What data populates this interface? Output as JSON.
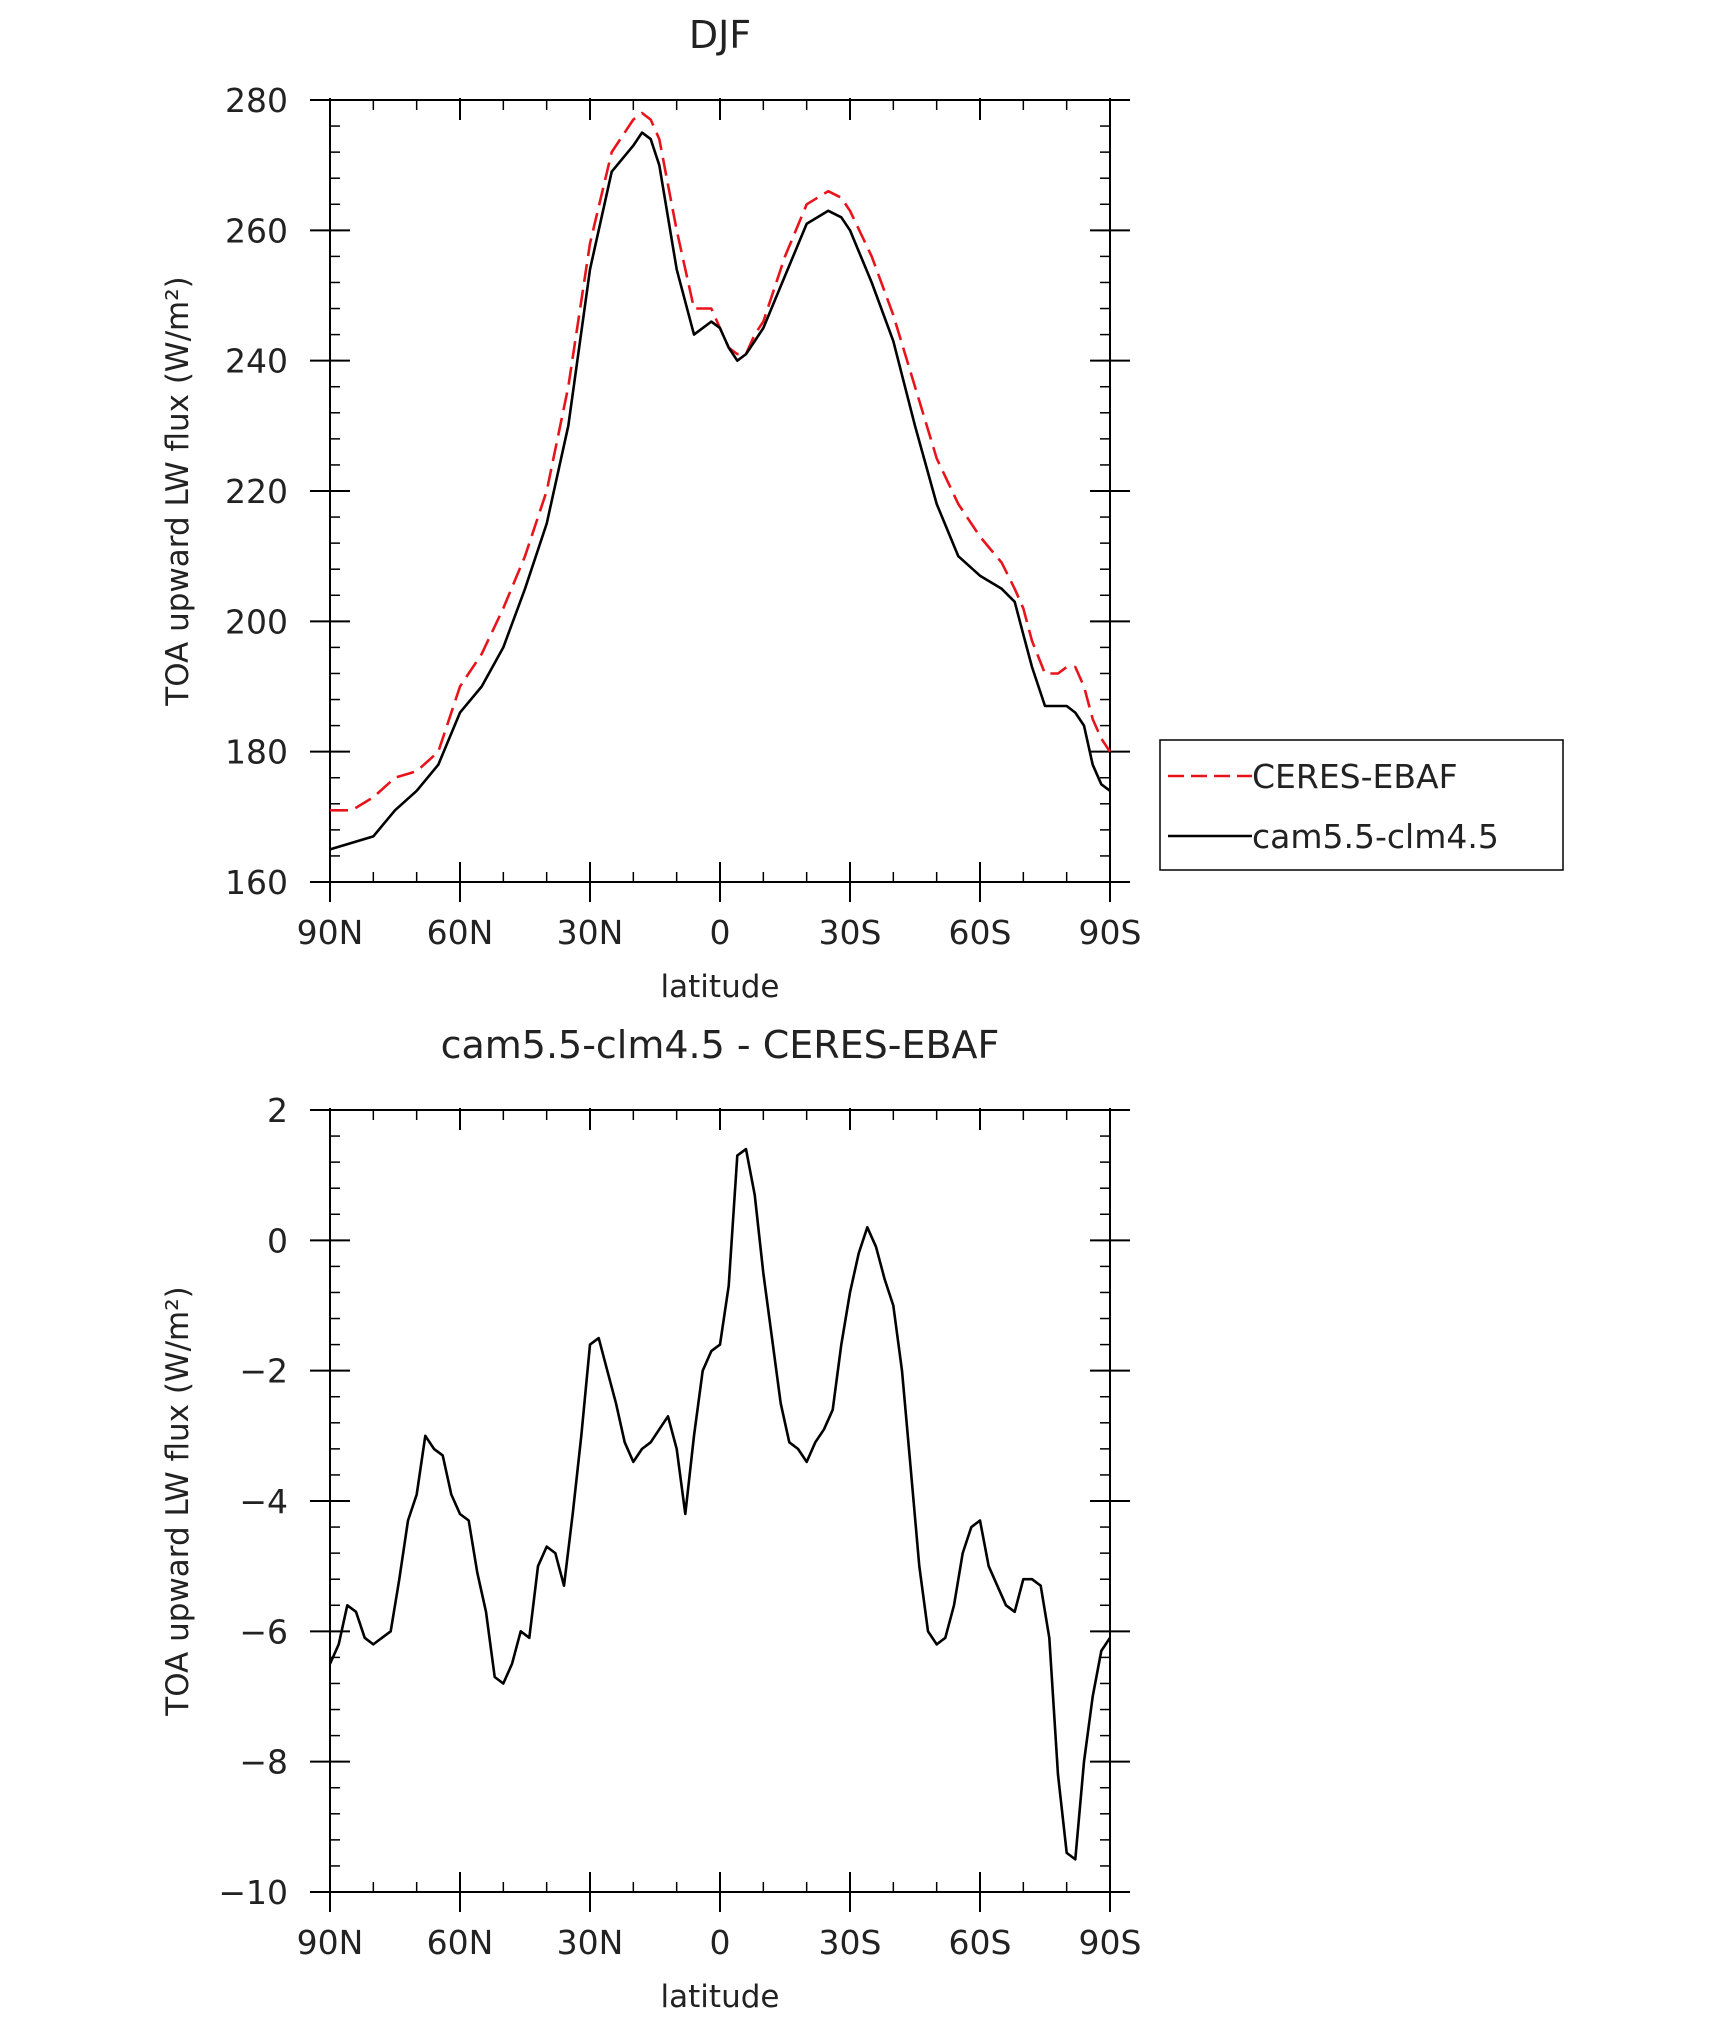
{
  "chart_data": [
    {
      "type": "line",
      "title": "DJF",
      "xlabel": "latitude",
      "ylabel": "TOA upward LW flux (W/m²)",
      "xlim": [
        90,
        -90
      ],
      "ylim": [
        160,
        280
      ],
      "x_ticks": [
        90,
        60,
        30,
        0,
        -30,
        -60,
        -90
      ],
      "x_tick_labels": [
        "90N",
        "60N",
        "30N",
        "0",
        "30S",
        "60S",
        "90S"
      ],
      "y_ticks": [
        160,
        180,
        200,
        220,
        240,
        260,
        280
      ],
      "y_tick_labels": [
        "160",
        "180",
        "200",
        "220",
        "240",
        "260",
        "280"
      ],
      "legend": "right",
      "series": [
        {
          "name": "CERES-EBAF",
          "color": "#e8141c",
          "dash": "dashed",
          "x": [
            90,
            85,
            80,
            75,
            70,
            65,
            60,
            55,
            50,
            45,
            40,
            35,
            30,
            25,
            20,
            18,
            16,
            14,
            10,
            6,
            4,
            2,
            0,
            -2,
            -4,
            -6,
            -8,
            -10,
            -15,
            -20,
            -25,
            -28,
            -30,
            -35,
            -40,
            -45,
            -50,
            -55,
            -60,
            -65,
            -68,
            -70,
            -72,
            -75,
            -78,
            -80,
            -82,
            -84,
            -86,
            -88,
            -90
          ],
          "y": [
            171,
            171,
            173,
            176,
            177,
            180,
            190,
            195,
            202,
            210,
            220,
            236,
            258,
            272,
            277,
            278,
            277,
            274,
            260,
            248,
            248,
            248,
            245,
            242,
            241,
            241,
            244,
            246,
            256,
            264,
            266,
            265,
            263,
            256,
            247,
            236,
            225,
            218,
            213,
            209,
            205,
            202,
            197,
            192,
            192,
            193,
            193,
            190,
            185,
            182,
            180
          ]
        },
        {
          "name": "cam5.5-clm4.5",
          "color": "#000000",
          "dash": "solid",
          "x": [
            90,
            85,
            80,
            75,
            70,
            65,
            60,
            55,
            50,
            45,
            40,
            35,
            30,
            25,
            20,
            18,
            16,
            14,
            10,
            6,
            4,
            2,
            0,
            -2,
            -4,
            -6,
            -8,
            -10,
            -15,
            -20,
            -25,
            -28,
            -30,
            -35,
            -40,
            -45,
            -50,
            -55,
            -60,
            -65,
            -68,
            -70,
            -72,
            -75,
            -78,
            -80,
            -82,
            -84,
            -86,
            -88,
            -90
          ],
          "y": [
            165,
            166,
            167,
            171,
            174,
            178,
            186,
            190,
            196,
            205,
            215,
            230,
            254,
            269,
            273,
            275,
            274,
            270,
            254,
            244,
            245,
            246,
            245,
            242,
            240,
            241,
            243,
            245,
            253,
            261,
            263,
            262,
            260,
            252,
            243,
            230,
            218,
            210,
            207,
            205,
            203,
            198,
            193,
            187,
            187,
            187,
            186,
            184,
            178,
            175,
            174
          ]
        }
      ]
    },
    {
      "type": "line",
      "title": "cam5.5-clm4.5 - CERES-EBAF",
      "xlabel": "latitude",
      "ylabel": "TOA upward LW flux (W/m²)",
      "xlim": [
        90,
        -90
      ],
      "ylim": [
        -10,
        2
      ],
      "x_ticks": [
        90,
        60,
        30,
        0,
        -30,
        -60,
        -90
      ],
      "x_tick_labels": [
        "90N",
        "60N",
        "30N",
        "0",
        "30S",
        "60S",
        "90S"
      ],
      "y_ticks": [
        -10,
        -8,
        -6,
        -4,
        -2,
        0,
        2
      ],
      "y_tick_labels": [
        "−10",
        "−8",
        "−6",
        "−4",
        "−2",
        "0",
        "2"
      ],
      "series": [
        {
          "color": "#000000",
          "dash": "solid",
          "x": [
            90,
            88,
            86,
            84,
            82,
            80,
            78,
            76,
            74,
            72,
            70,
            68,
            66,
            64,
            62,
            60,
            58,
            56,
            54,
            52,
            50,
            48,
            46,
            44,
            42,
            40,
            38,
            36,
            34,
            32,
            30,
            28,
            26,
            24,
            22,
            20,
            18,
            16,
            14,
            12,
            10,
            8,
            6,
            4,
            2,
            0,
            -2,
            -4,
            -6,
            -8,
            -10,
            -12,
            -14,
            -16,
            -18,
            -20,
            -22,
            -24,
            -26,
            -28,
            -30,
            -32,
            -34,
            -36,
            -38,
            -40,
            -42,
            -44,
            -46,
            -48,
            -50,
            -52,
            -54,
            -56,
            -58,
            -60,
            -62,
            -64,
            -66,
            -68,
            -70,
            -72,
            -74,
            -76,
            -78,
            -80,
            -82,
            -84,
            -86,
            -88,
            -90
          ],
          "y": [
            -6.5,
            -6.2,
            -5.6,
            -5.7,
            -6.1,
            -6.2,
            -6.1,
            -6.0,
            -5.2,
            -4.3,
            -3.9,
            -3.0,
            -3.2,
            -3.3,
            -3.9,
            -4.2,
            -4.3,
            -5.1,
            -5.7,
            -6.7,
            -6.8,
            -6.5,
            -6.0,
            -6.1,
            -5.0,
            -4.7,
            -4.8,
            -5.3,
            -4.2,
            -3.0,
            -1.6,
            -1.5,
            -2.0,
            -2.5,
            -3.1,
            -3.4,
            -3.2,
            -3.1,
            -2.9,
            -2.7,
            -3.2,
            -4.2,
            -3.0,
            -2.0,
            -1.7,
            -1.6,
            -0.7,
            1.3,
            1.4,
            0.7,
            -0.5,
            -1.5,
            -2.5,
            -3.1,
            -3.2,
            -3.4,
            -3.1,
            -2.9,
            -2.6,
            -1.6,
            -0.8,
            -0.2,
            0.2,
            -0.1,
            -0.6,
            -1.0,
            -2.0,
            -3.5,
            -5.0,
            -6.0,
            -6.2,
            -6.1,
            -5.6,
            -4.8,
            -4.4,
            -4.3,
            -5.0,
            -5.3,
            -5.6,
            -5.7,
            -5.2,
            -5.2,
            -5.3,
            -6.1,
            -8.2,
            -9.4,
            -9.5,
            -8.0,
            -7.0,
            -6.3,
            -6.1
          ]
        }
      ]
    }
  ]
}
